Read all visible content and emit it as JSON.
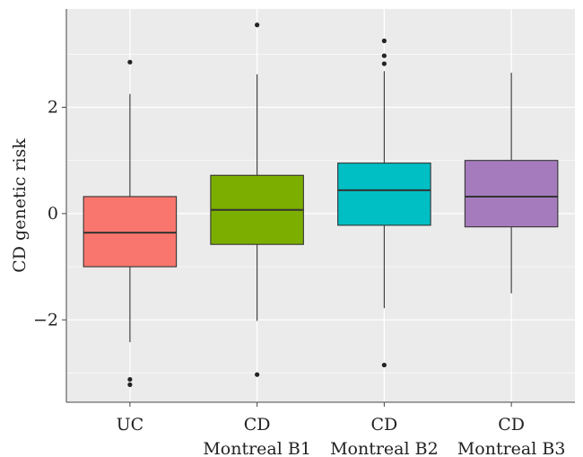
{
  "chart_data": {
    "type": "boxplot",
    "title": "",
    "xlabel": "",
    "ylabel": "CD genetic risk",
    "ylim": [
      -3.55,
      3.85
    ],
    "yticks": [
      -2,
      0,
      2
    ],
    "ytick_labels": [
      "−2",
      "0",
      "2"
    ],
    "grid": true,
    "legend": "none",
    "categories": [
      {
        "label_lines": [
          "UC"
        ]
      },
      {
        "label_lines": [
          "CD",
          "Montreal B1"
        ]
      },
      {
        "label_lines": [
          "CD",
          "Montreal B2"
        ]
      },
      {
        "label_lines": [
          "CD",
          "Montreal B3"
        ]
      }
    ],
    "boxes": [
      {
        "whisker_low": -2.42,
        "q1": -1.0,
        "median": -0.36,
        "q3": 0.32,
        "whisker_high": 2.25,
        "outliers": [
          2.85,
          -3.12,
          -3.22
        ],
        "color": "#F8766D"
      },
      {
        "whisker_low": -2.02,
        "q1": -0.58,
        "median": 0.07,
        "q3": 0.72,
        "whisker_high": 2.62,
        "outliers": [
          3.55,
          -3.03
        ],
        "color": "#7CAE00"
      },
      {
        "whisker_low": -1.78,
        "q1": -0.22,
        "median": 0.44,
        "q3": 0.95,
        "whisker_high": 2.68,
        "outliers": [
          3.25,
          2.97,
          2.82,
          -2.85
        ],
        "color": "#00BFC4"
      },
      {
        "whisker_low": -1.5,
        "q1": -0.25,
        "median": 0.32,
        "q3": 1.0,
        "whisker_high": 2.65,
        "outliers": [],
        "color": "#A57BBE"
      }
    ],
    "colors": {
      "panel_background": "#EBEBEB",
      "grid": "#FFFFFF",
      "outline": "#333333"
    }
  }
}
